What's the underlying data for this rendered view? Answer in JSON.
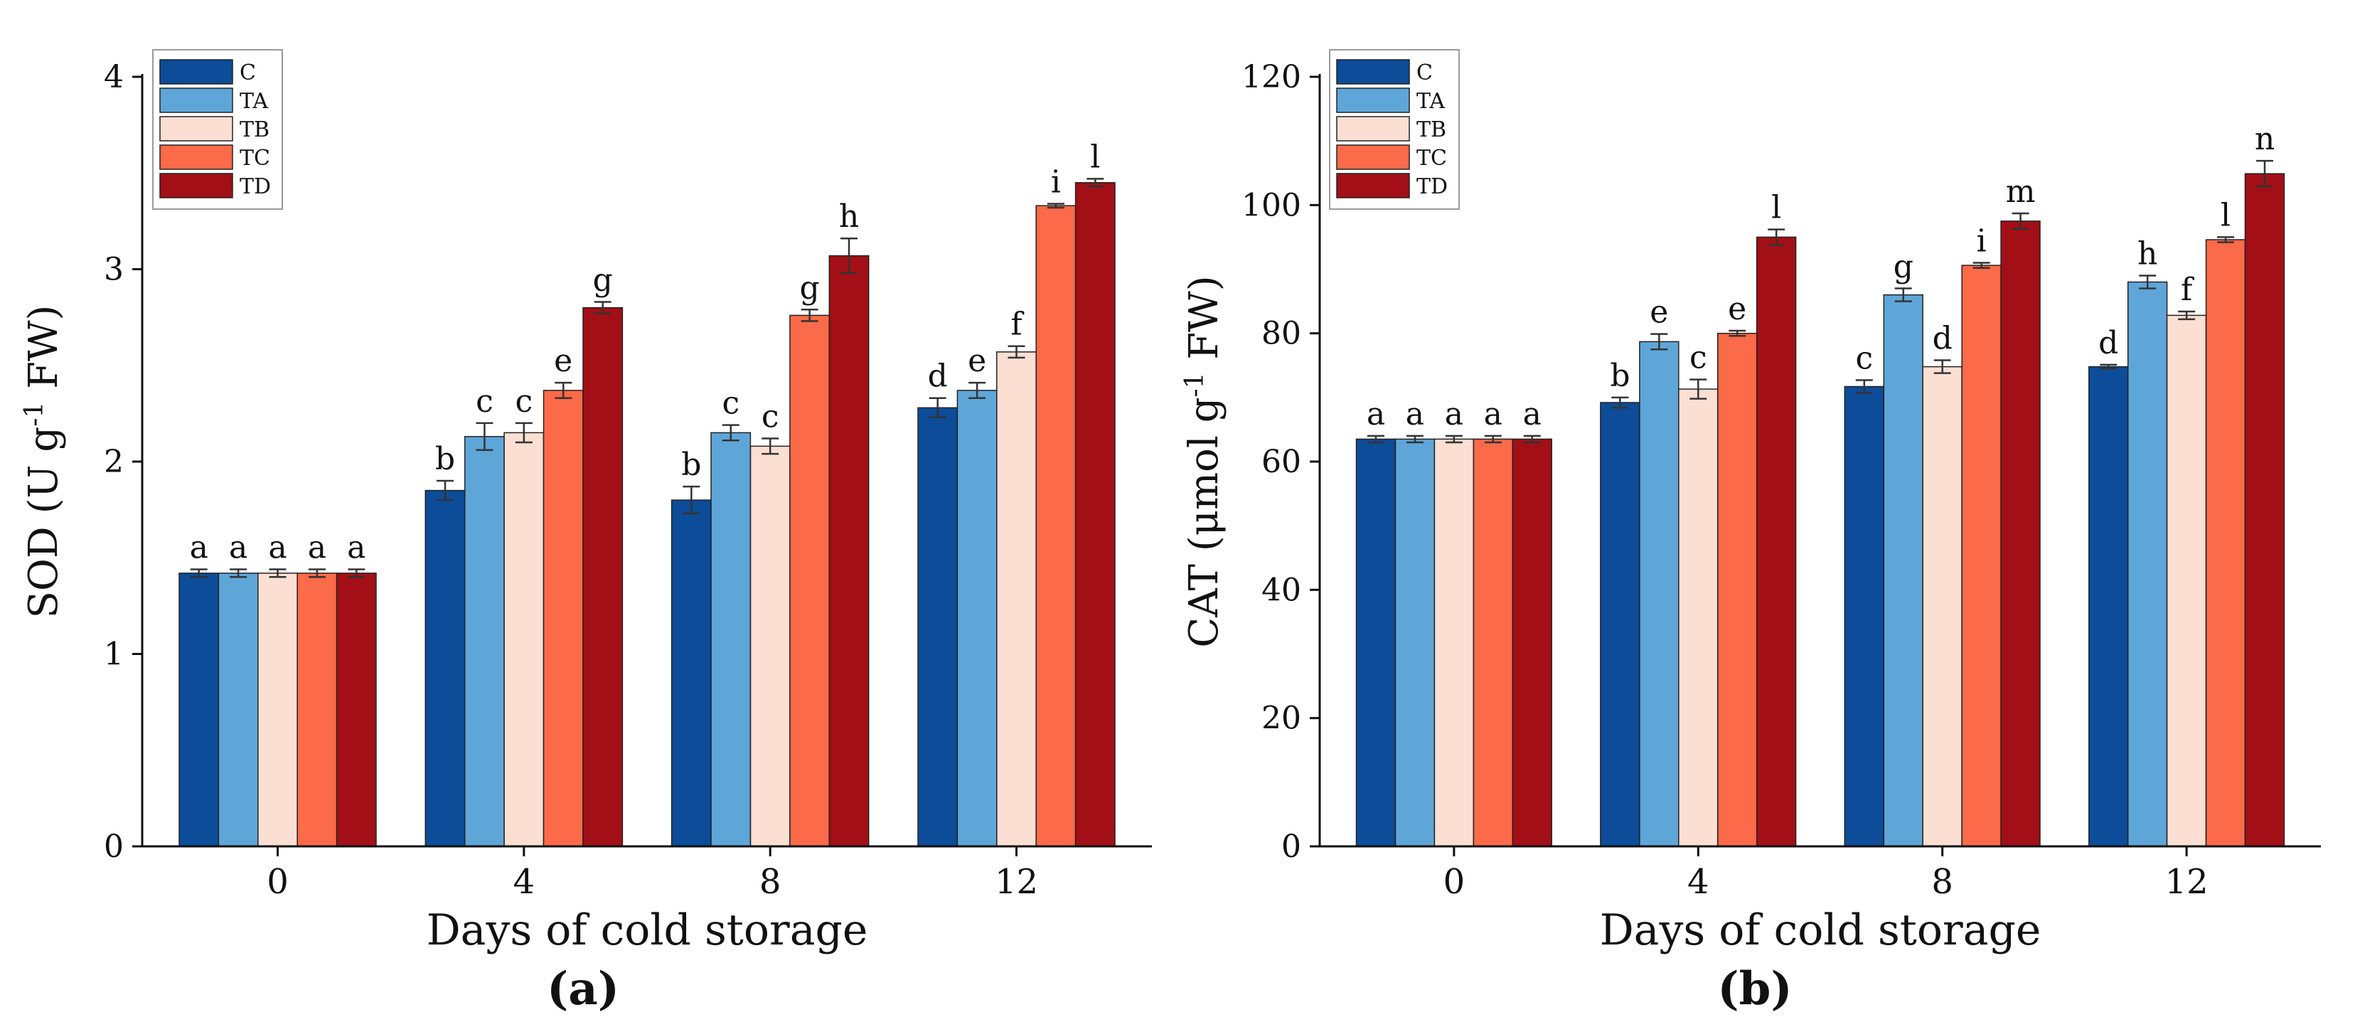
{
  "panels": [
    {
      "id": "a",
      "label": "(a)"
    },
    {
      "id": "b",
      "label": "(b)"
    }
  ],
  "colors": {
    "C": "#0d4c98",
    "TA": "#5fa6d8",
    "TB": "#fbdfd2",
    "TC": "#fb6a49",
    "TD": "#a30f16"
  },
  "chart_data": [
    {
      "type": "bar",
      "panel": "(a)",
      "title": "",
      "xlabel": "Days of cold storage",
      "ylabel": "SOD (U g-1 FW)",
      "ylabel_parts": {
        "base": "SOD (U g",
        "sup": "-1",
        "tail": " FW)"
      },
      "categories": [
        "0",
        "4",
        "8",
        "12"
      ],
      "ylim": [
        0,
        4
      ],
      "yticks": [
        0,
        1,
        2,
        3,
        4
      ],
      "ytick_labels": [
        "0",
        "1",
        "2",
        "3",
        "4"
      ],
      "legend": [
        "C",
        "TA",
        "TB",
        "TC",
        "TD"
      ],
      "legend_position": "top-left",
      "series": [
        {
          "name": "C",
          "values": [
            1.42,
            1.85,
            1.8,
            2.28
          ],
          "errors": [
            0.02,
            0.05,
            0.07,
            0.05
          ],
          "letters": [
            "a",
            "b",
            "b",
            "d"
          ]
        },
        {
          "name": "TA",
          "values": [
            1.42,
            2.13,
            2.15,
            2.37
          ],
          "errors": [
            0.02,
            0.07,
            0.04,
            0.04
          ],
          "letters": [
            "a",
            "c",
            "c",
            "e"
          ]
        },
        {
          "name": "TB",
          "values": [
            1.42,
            2.15,
            2.08,
            2.57
          ],
          "errors": [
            0.02,
            0.05,
            0.04,
            0.03
          ],
          "letters": [
            "a",
            "c",
            "c",
            "f"
          ]
        },
        {
          "name": "TC",
          "values": [
            1.42,
            2.37,
            2.76,
            3.33
          ],
          "errors": [
            0.02,
            0.04,
            0.03,
            0.01
          ],
          "letters": [
            "a",
            "e",
            "g",
            "i"
          ]
        },
        {
          "name": "TD",
          "values": [
            1.42,
            2.8,
            3.07,
            3.45
          ],
          "errors": [
            0.02,
            0.03,
            0.09,
            0.02
          ],
          "letters": [
            "a",
            "g",
            "h",
            "l"
          ]
        }
      ]
    },
    {
      "type": "bar",
      "panel": "(b)",
      "title": "",
      "xlabel": "Days of cold storage",
      "ylabel": "CAT (μmol g-1 FW)",
      "ylabel_parts": {
        "base": "CAT (μmol g",
        "sup": "-1",
        "tail": " FW)"
      },
      "categories": [
        "0",
        "4",
        "8",
        "12"
      ],
      "ylim": [
        0,
        120
      ],
      "yticks": [
        0,
        20,
        40,
        60,
        80,
        100,
        120
      ],
      "ytick_labels": [
        "0",
        "20",
        "40",
        "60",
        "80",
        "100",
        "120"
      ],
      "legend": [
        "C",
        "TA",
        "TB",
        "TC",
        "TD"
      ],
      "legend_position": "top-left",
      "series": [
        {
          "name": "C",
          "values": [
            63.5,
            69.2,
            71.7,
            74.8
          ],
          "errors": [
            0.5,
            0.8,
            1.0,
            0.3
          ],
          "letters": [
            "a",
            "b",
            "c",
            "d"
          ]
        },
        {
          "name": "TA",
          "values": [
            63.5,
            78.7,
            86.0,
            88.0
          ],
          "errors": [
            0.5,
            1.2,
            1.0,
            1.0
          ],
          "letters": [
            "a",
            "e",
            "g",
            "h"
          ]
        },
        {
          "name": "TB",
          "values": [
            63.5,
            71.3,
            74.8,
            82.8
          ],
          "errors": [
            0.5,
            1.5,
            1.0,
            0.6
          ],
          "letters": [
            "a",
            "c",
            "d",
            "f"
          ]
        },
        {
          "name": "TC",
          "values": [
            63.5,
            80.0,
            90.6,
            94.6
          ],
          "errors": [
            0.5,
            0.4,
            0.4,
            0.4
          ],
          "letters": [
            "a",
            "e",
            "i",
            "l"
          ]
        },
        {
          "name": "TD",
          "values": [
            63.5,
            95.0,
            97.5,
            104.9
          ],
          "errors": [
            0.5,
            1.2,
            1.2,
            2.0
          ],
          "letters": [
            "a",
            "l",
            "m",
            "n"
          ]
        }
      ]
    }
  ]
}
